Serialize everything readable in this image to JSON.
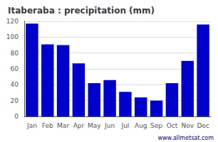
{
  "chart_data": {
    "type": "bar",
    "title": "Itaberaba : precipitation (mm)",
    "categories": [
      "Jan",
      "Feb",
      "Mar",
      "Apr",
      "May",
      "Jun",
      "Jul",
      "Aug",
      "Sep",
      "Oct",
      "Nov",
      "Dec"
    ],
    "values": [
      117,
      91,
      90,
      67,
      42,
      46,
      31,
      24,
      20,
      42,
      70,
      116
    ],
    "color": "#0000CC",
    "ylim": [
      0,
      120
    ],
    "yticks": [
      0,
      20,
      40,
      60,
      80,
      100,
      120
    ],
    "grid": true,
    "annotations": [
      "www.allmetsat.com"
    ]
  }
}
